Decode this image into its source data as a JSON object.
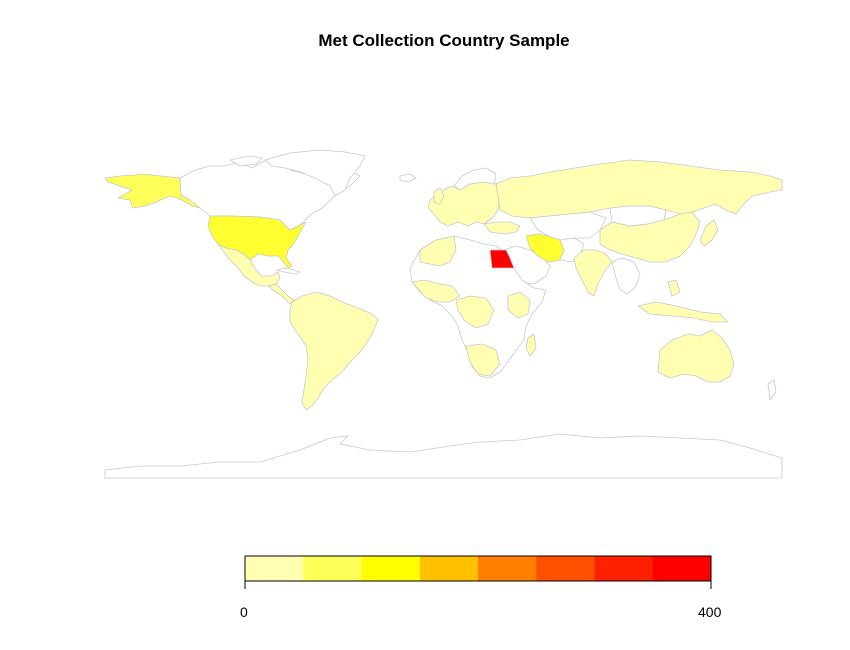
{
  "title": "Met Collection Country Sample",
  "legend": {
    "min_label": "0",
    "max_label": "400",
    "colors": [
      "#ffffb2",
      "#ffff5a",
      "#ffff00",
      "#ffc000",
      "#ff8000",
      "#ff5000",
      "#ff2000",
      "#ff0000"
    ]
  },
  "map_style": {
    "border_color": "#c8c8c8",
    "no_data_fill": "#ffffff"
  },
  "chart_data": {
    "type": "choropleth",
    "title": "Met Collection Country Sample",
    "value_range": [
      0,
      400
    ],
    "legend_placement": "bottom",
    "bins": 8,
    "regions": [
      {
        "name": "Egypt",
        "value": 400,
        "color": "#ff0000"
      },
      {
        "name": "United States",
        "value": 90,
        "color": "#ffff30"
      },
      {
        "name": "Iran",
        "value": 90,
        "color": "#ffff30"
      },
      {
        "name": "Russia",
        "value": 10,
        "color": "#ffffb2"
      },
      {
        "name": "China",
        "value": 10,
        "color": "#ffffb2"
      },
      {
        "name": "India",
        "value": 10,
        "color": "#ffffb2"
      },
      {
        "name": "Australia",
        "value": 10,
        "color": "#ffffb2"
      },
      {
        "name": "Brazil",
        "value": 10,
        "color": "#ffffb2"
      },
      {
        "name": "Canada",
        "value": 0,
        "color": "#ffffff"
      }
    ]
  }
}
